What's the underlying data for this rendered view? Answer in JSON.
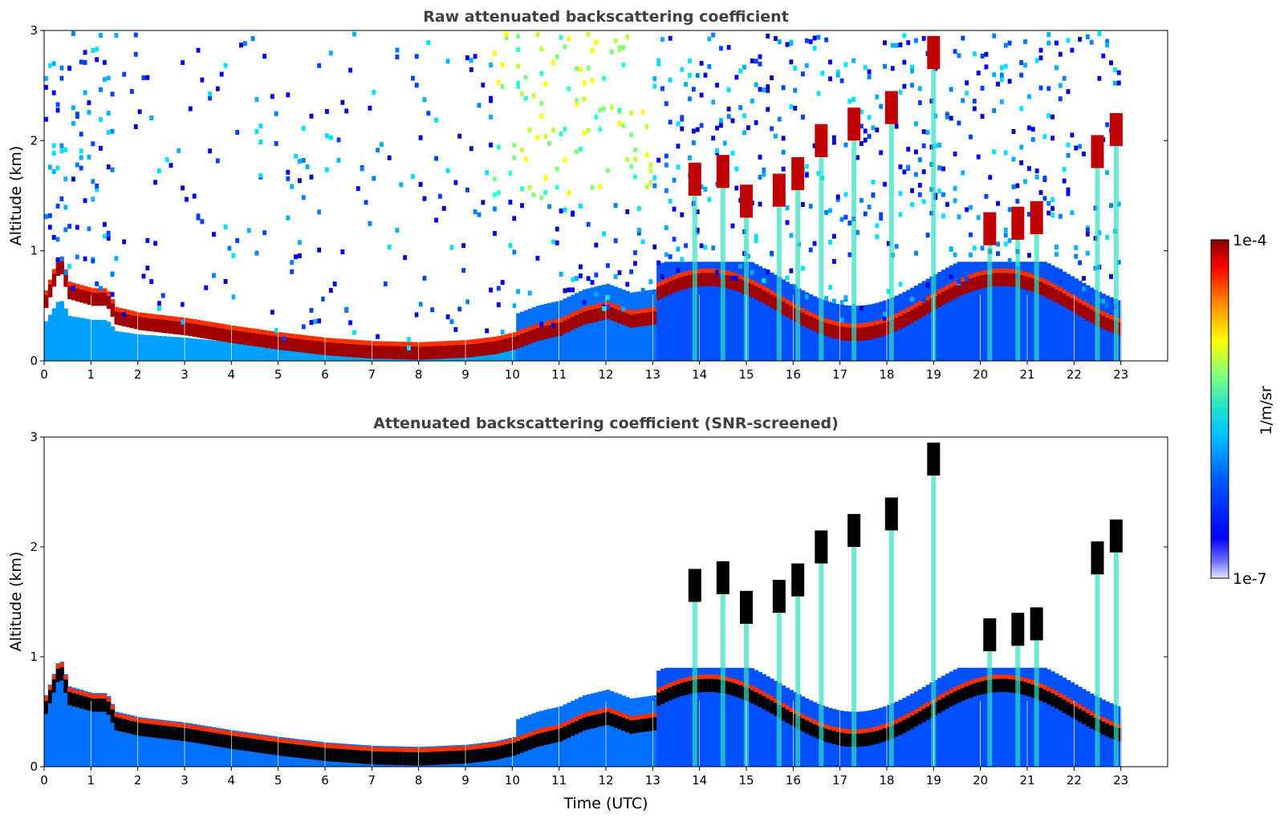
{
  "chart_data": [
    {
      "type": "heatmap",
      "title": "Raw attenuated backscattering coefficient",
      "xlabel": "",
      "ylabel": "Altitude (km)",
      "xlim": [
        0,
        24
      ],
      "ylim": [
        0,
        3
      ],
      "xticks": [
        "0",
        "1",
        "2",
        "3",
        "4",
        "5",
        "6",
        "7",
        "8",
        "9",
        "10",
        "11",
        "12",
        "13",
        "14",
        "15",
        "16",
        "17",
        "18",
        "19",
        "20",
        "21",
        "22",
        "23"
      ],
      "yticks": [
        "0",
        "1",
        "2",
        "3"
      ],
      "data_end_hour": 23,
      "layers": {
        "boundary_layer_top_km": [
          [
            0.0,
            0.6
          ],
          [
            0.3,
            0.95
          ],
          [
            0.5,
            0.68
          ],
          [
            1.0,
            0.62
          ],
          [
            1.3,
            0.62
          ],
          [
            1.5,
            0.45
          ],
          [
            2,
            0.4
          ],
          [
            3,
            0.35
          ],
          [
            4,
            0.28
          ],
          [
            5,
            0.22
          ],
          [
            6,
            0.17
          ],
          [
            7,
            0.14
          ],
          [
            8,
            0.13
          ],
          [
            9,
            0.15
          ],
          [
            9.6,
            0.18
          ],
          [
            10,
            0.22
          ],
          [
            10.5,
            0.3
          ],
          [
            11,
            0.35
          ],
          [
            11.5,
            0.45
          ],
          [
            12,
            0.5
          ],
          [
            12.5,
            0.42
          ],
          [
            13,
            0.45
          ]
        ],
        "elevated_clouds_km": [
          [
            13.9,
            1.65
          ],
          [
            14.5,
            1.72
          ],
          [
            15.0,
            1.45
          ],
          [
            15.7,
            1.55
          ],
          [
            16.1,
            1.7
          ],
          [
            16.6,
            2.0
          ],
          [
            17.3,
            2.15
          ],
          [
            18.1,
            2.3
          ],
          [
            19.0,
            2.8
          ],
          [
            20.2,
            1.2
          ],
          [
            20.8,
            1.25
          ],
          [
            21.2,
            1.3
          ],
          [
            22.5,
            1.9
          ],
          [
            22.9,
            2.1
          ]
        ]
      },
      "colorbar": {
        "min": "1e-7",
        "max": "1e-4",
        "label": "1/m/sr",
        "colormap": "jet"
      }
    },
    {
      "type": "heatmap",
      "title": "Attenuated backscattering coefficient (SNR-screened)",
      "xlabel": "Time (UTC)",
      "ylabel": "Altitude (km)",
      "xlim": [
        0,
        24
      ],
      "ylim": [
        0,
        3
      ],
      "xticks": [
        "0",
        "1",
        "2",
        "3",
        "4",
        "5",
        "6",
        "7",
        "8",
        "9",
        "10",
        "11",
        "12",
        "13",
        "14",
        "15",
        "16",
        "17",
        "18",
        "19",
        "20",
        "21",
        "22",
        "23"
      ],
      "yticks": [
        "0",
        "1",
        "2",
        "3"
      ],
      "data_end_hour": 23,
      "screened_noise": true,
      "saturated_color": "#000000"
    }
  ],
  "colorbar": {
    "top_label": "1e-4",
    "bottom_label": "1e-7",
    "unit_label": "1/m/sr"
  }
}
